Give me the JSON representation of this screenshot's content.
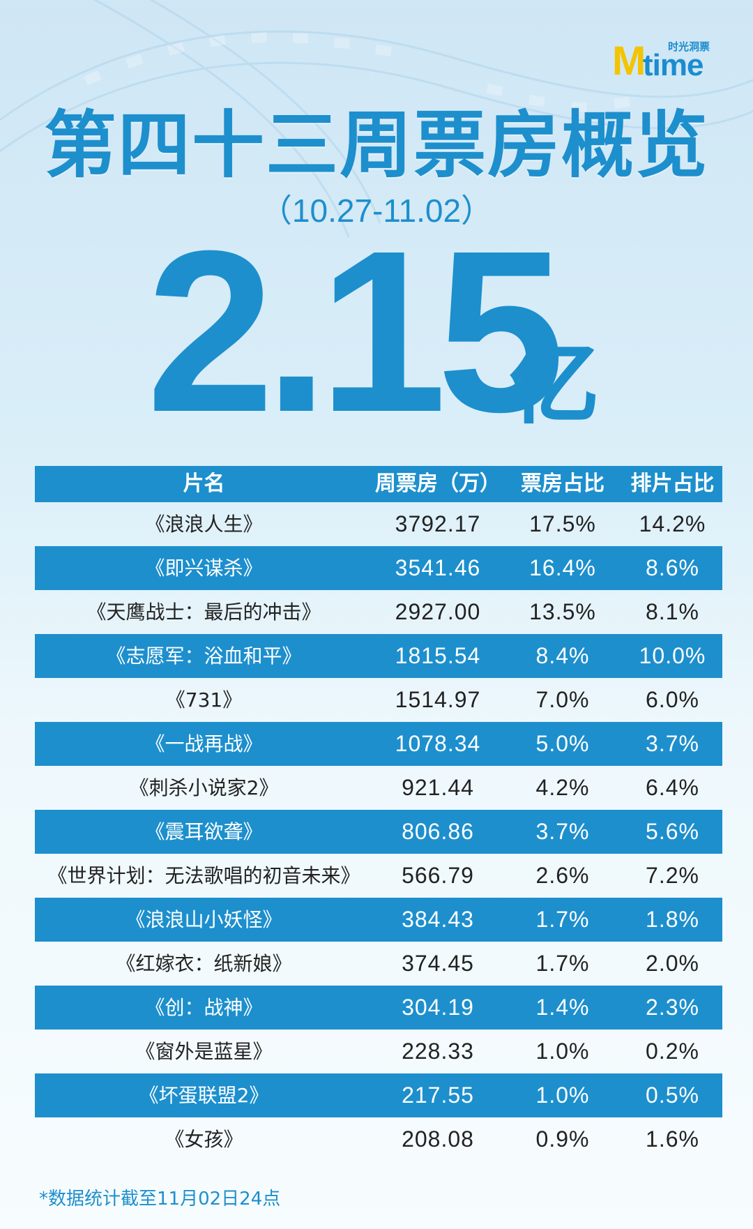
{
  "logo": {
    "mark": "M",
    "wordmark": "time",
    "cn": "时光洞票"
  },
  "title": "第四十三周票房概览",
  "date_range": "（10.27-11.02）",
  "total": {
    "value": "2.15",
    "unit": "亿"
  },
  "table": {
    "headers": [
      "片名",
      "周票房（万）",
      "票房占比",
      "排片占比"
    ],
    "rows": [
      {
        "name": "《浪浪人生》",
        "box_office": "3792.17",
        "share": "17.5%",
        "screenings": "14.2%"
      },
      {
        "name": "《即兴谋杀》",
        "box_office": "3541.46",
        "share": "16.4%",
        "screenings": "8.6%"
      },
      {
        "name": "《天鹰战士：最后的冲击》",
        "box_office": "2927.00",
        "share": "13.5%",
        "screenings": "8.1%"
      },
      {
        "name": "《志愿军：浴血和平》",
        "box_office": "1815.54",
        "share": "8.4%",
        "screenings": "10.0%"
      },
      {
        "name": "《731》",
        "box_office": "1514.97",
        "share": "7.0%",
        "screenings": "6.0%"
      },
      {
        "name": "《一战再战》",
        "box_office": "1078.34",
        "share": "5.0%",
        "screenings": "3.7%"
      },
      {
        "name": "《刺杀小说家2》",
        "box_office": "921.44",
        "share": "4.2%",
        "screenings": "6.4%"
      },
      {
        "name": "《震耳欲聋》",
        "box_office": "806.86",
        "share": "3.7%",
        "screenings": "5.6%"
      },
      {
        "name": "《世界计划：无法歌唱的初音未来》",
        "box_office": "566.79",
        "share": "2.6%",
        "screenings": "7.2%"
      },
      {
        "name": "《浪浪山小妖怪》",
        "box_office": "384.43",
        "share": "1.7%",
        "screenings": "1.8%"
      },
      {
        "name": "《红嫁衣：纸新娘》",
        "box_office": "374.45",
        "share": "1.7%",
        "screenings": "2.0%"
      },
      {
        "name": "《创：战神》",
        "box_office": "304.19",
        "share": "1.4%",
        "screenings": "2.3%"
      },
      {
        "name": "《窗外是蓝星》",
        "box_office": "228.33",
        "share": "1.0%",
        "screenings": "0.2%"
      },
      {
        "name": "《坏蛋联盟2》",
        "box_office": "217.55",
        "share": "1.0%",
        "screenings": "0.5%"
      },
      {
        "name": "《女孩》",
        "box_office": "208.08",
        "share": "0.9%",
        "screenings": "1.6%"
      }
    ]
  },
  "footnote": "*数据统计截至11月02日24点",
  "colors": {
    "accent": "#1d8fcd",
    "logo_yellow": "#f3c400",
    "text_dark": "#222222"
  }
}
